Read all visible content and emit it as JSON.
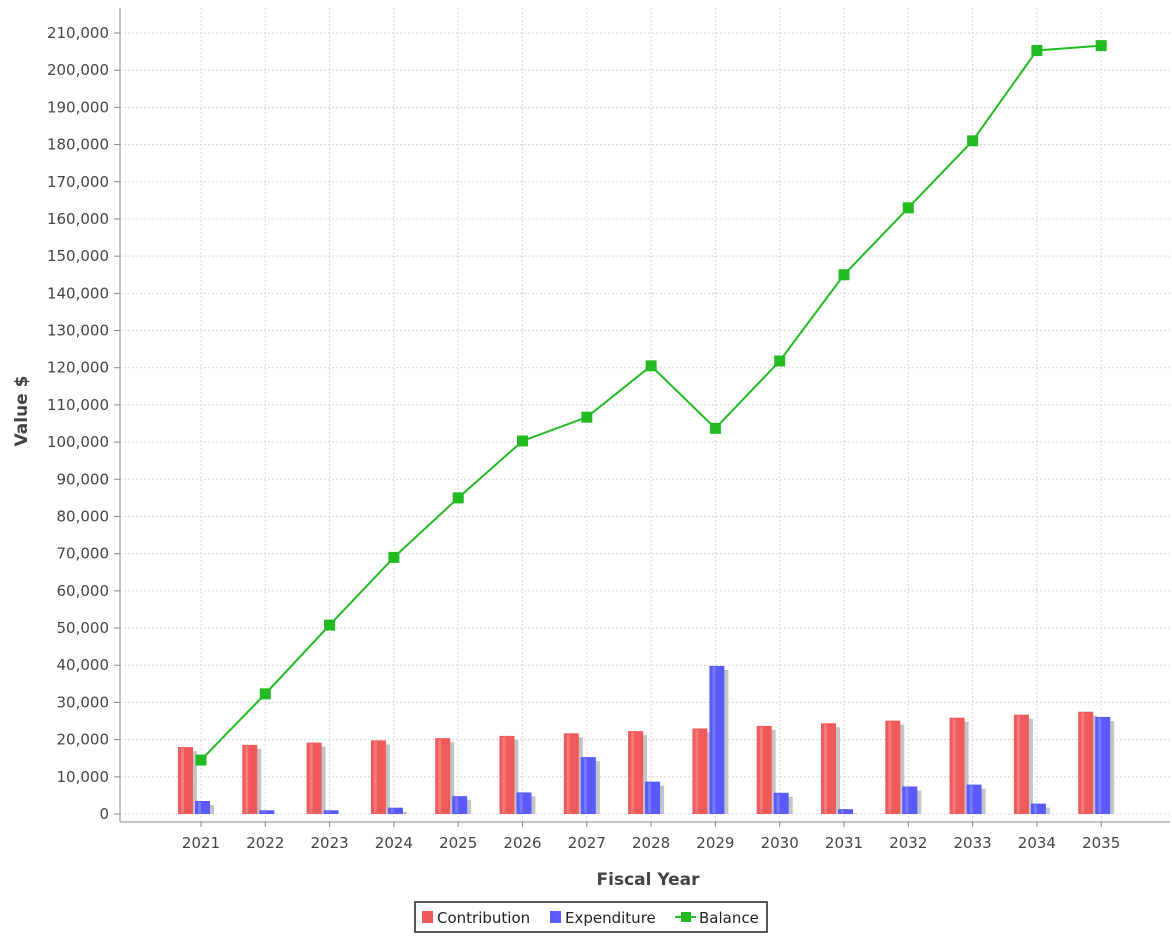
{
  "chart_data": {
    "type": "bar",
    "title": "",
    "xlabel": "Fiscal Year",
    "ylabel": "Value $",
    "ylim": [
      0,
      210000
    ],
    "y_ticks": [
      0,
      10000,
      20000,
      30000,
      40000,
      50000,
      60000,
      70000,
      80000,
      90000,
      100000,
      110000,
      120000,
      130000,
      140000,
      150000,
      160000,
      170000,
      180000,
      190000,
      200000,
      210000
    ],
    "y_tick_labels": [
      "0",
      "10,000",
      "20,000",
      "30,000",
      "40,000",
      "50,000",
      "60,000",
      "70,000",
      "80,000",
      "90,000",
      "100,000",
      "110,000",
      "120,000",
      "130,000",
      "140,000",
      "150,000",
      "160,000",
      "170,000",
      "180,000",
      "190,000",
      "200,000",
      "210,000"
    ],
    "categories": [
      "2021",
      "2022",
      "2023",
      "2024",
      "2025",
      "2026",
      "2027",
      "2028",
      "2029",
      "2030",
      "2031",
      "2032",
      "2033",
      "2034",
      "2035"
    ],
    "grid": true,
    "legend_position": "bottom-center",
    "series": [
      {
        "name": "Contribution",
        "type": "bar",
        "color": "#f05a5a",
        "values": [
          18000,
          18600,
          19200,
          19800,
          20400,
          21000,
          21700,
          22300,
          23000,
          23700,
          24400,
          25100,
          25900,
          26700,
          27500
        ]
      },
      {
        "name": "Expenditure",
        "type": "bar",
        "color": "#5a5aff",
        "values": [
          3500,
          1000,
          1000,
          1700,
          4800,
          5800,
          15300,
          8700,
          39800,
          5700,
          1300,
          7400,
          7900,
          2800,
          26100
        ]
      },
      {
        "name": "Balance",
        "type": "line",
        "color": "#22bb22",
        "values": [
          14500,
          32300,
          50800,
          69000,
          85000,
          100300,
          106700,
          120500,
          103700,
          121800,
          145000,
          163000,
          181000,
          205300,
          206600
        ]
      }
    ]
  }
}
